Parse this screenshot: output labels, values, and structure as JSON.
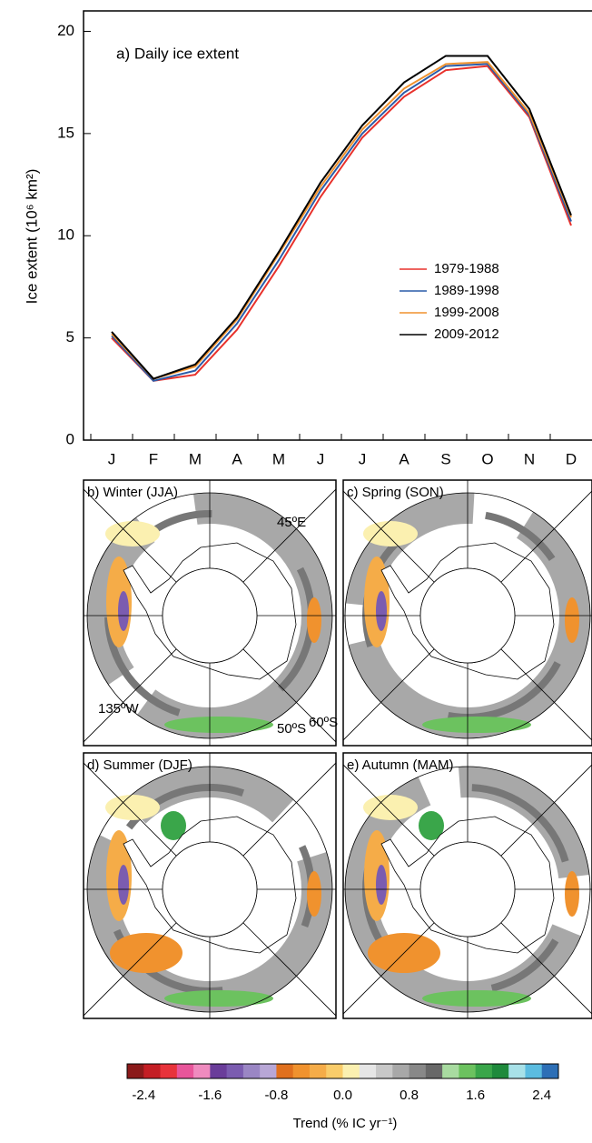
{
  "chart_data": [
    {
      "type": "line",
      "annotation": "a) Daily ice extent",
      "ylabel": "Ice extent (10⁶ km²)",
      "categories": [
        "J",
        "F",
        "M",
        "A",
        "M",
        "J",
        "J",
        "A",
        "S",
        "O",
        "N",
        "D"
      ],
      "ylim": [
        0,
        21
      ],
      "yticks": [
        0,
        5,
        10,
        15,
        20
      ],
      "legend": "lower right",
      "series": [
        {
          "name": "1979-1988",
          "color": "#e8312b",
          "values": [
            5.0,
            2.9,
            3.2,
            5.4,
            8.5,
            11.9,
            14.8,
            16.8,
            18.1,
            18.3,
            15.8,
            10.5
          ]
        },
        {
          "name": "1989-1998",
          "color": "#2a5ba8",
          "values": [
            5.1,
            2.9,
            3.4,
            5.7,
            8.8,
            12.2,
            15.0,
            17.0,
            18.3,
            18.4,
            15.9,
            10.7
          ]
        },
        {
          "name": "1999-2008",
          "color": "#f0922e",
          "values": [
            5.2,
            3.0,
            3.6,
            5.9,
            9.1,
            12.4,
            15.2,
            17.2,
            18.4,
            18.5,
            16.0,
            10.9
          ]
        },
        {
          "name": "2009-2012",
          "color": "#000000",
          "values": [
            5.3,
            3.0,
            3.7,
            6.0,
            9.2,
            12.6,
            15.4,
            17.5,
            18.8,
            18.8,
            16.2,
            11.0
          ]
        }
      ]
    },
    {
      "type": "map",
      "panels": [
        {
          "title": "b) Winter (JJA)",
          "labels": [
            "45ºE",
            "60ºS",
            "135ºW",
            "50ºS"
          ]
        },
        {
          "title": "c) Spring (SON)",
          "labels": []
        },
        {
          "title": "d) Summer (DJF)",
          "labels": []
        },
        {
          "title": "e) Autumn (MAM)",
          "labels": []
        }
      ],
      "colorbar": {
        "label": "Trend (% IC yr⁻¹)",
        "lim": [
          -2.6,
          2.6
        ],
        "ticks": [
          -2.4,
          -1.6,
          -0.8,
          {
            "value": 0,
            "label": "0.0"
          },
          0.8,
          1.6,
          2.4
        ],
        "colors": [
          "#8b1a1a",
          "#c41e24",
          "#e8333b",
          "#e8559a",
          "#ef8bbf",
          "#6a3d9a",
          "#7b5cb0",
          "#9a86c4",
          "#b8a7d6",
          "#e0701e",
          "#f0922e",
          "#f5ac48",
          "#f9cc6a",
          "#fbf0b0",
          "#e6e6e6",
          "#c8c8c8",
          "#a8a8a8",
          "#888888",
          "#686868",
          "#a8dba0",
          "#6cc25f",
          "#3aa64a",
          "#1f8a3c",
          "#a8e1e8",
          "#5bbce0",
          "#2d6fb6"
        ]
      }
    }
  ]
}
